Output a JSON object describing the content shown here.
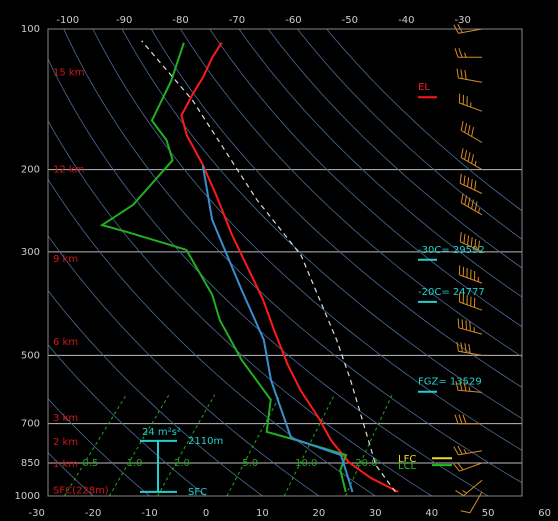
{
  "chart_data": {
    "type": "skewt",
    "ylim": [
      1000,
      100
    ],
    "ylog": true,
    "yticks": [
      100,
      200,
      300,
      500,
      700,
      850,
      1000
    ],
    "xlim": [
      -28,
      56
    ],
    "xticks": [
      -30,
      -20,
      -10,
      0,
      10,
      20,
      30,
      40,
      50,
      60
    ],
    "x2ticks": [
      -100,
      -90,
      -80,
      -70,
      -60,
      -50,
      -40,
      -30
    ],
    "grid": true,
    "series": [
      {
        "color": "#ff1a1a",
        "x": [
          33.4,
          26.2,
          19.8,
          13.1,
          7.4,
          -0.4,
          -6.7,
          -14.8,
          -21.6,
          -30.2,
          -37.6,
          -47.0,
          -54.2,
          -61.7,
          -65.9,
          -67.3,
          -68.2,
          -69.8,
          -70.5
        ],
        "y": [
          980,
          914,
          846,
          759,
          681,
          593,
          524,
          441,
          380,
          320,
          276,
          226,
          195,
          169,
          153,
          138,
          127,
          115,
          107
        ]
      },
      {
        "color": "#20b020",
        "x": [
          24.1,
          19.6,
          18.2,
          6.9,
          0.4,
          -4.1,
          -15.7,
          -26,
          -31.4,
          -43.3,
          -56.7,
          -62.2,
          -60,
          -60.2,
          -64.5,
          -70.3,
          -73.3,
          -77.2
        ],
        "y": [
          980,
          880,
          817,
          759,
          729,
          622,
          511,
          420,
          371,
          297,
          272,
          263,
          238,
          191,
          173,
          157,
          129,
          107
        ]
      },
      {
        "color": "#3a8fd0",
        "x": [
          25.3,
          17.3,
          5.7,
          -7.2,
          -15,
          -27,
          -43.6,
          -54
        ],
        "y": [
          980,
          817,
          751,
          565,
          463,
          362,
          256,
          196
        ]
      },
      {
        "color": "#dddddd",
        "dash": true,
        "x": [
          32.9,
          25.1,
          6.9,
          -2.1,
          -22.1,
          -38.9,
          -66.4,
          -85
        ],
        "y": [
          980,
          859,
          565,
          463,
          305,
          232,
          142,
          106
        ]
      }
    ],
    "dry_adiabats": [
      -30,
      -20,
      -10,
      0,
      10,
      20,
      30,
      40,
      50,
      60,
      70,
      80,
      90,
      100,
      110,
      120,
      130,
      140,
      150
    ],
    "mixing_ratios": [
      {
        "value": 0.5,
        "label": "0.5"
      },
      {
        "value": 1,
        "label": "1.0"
      },
      {
        "value": 2,
        "label": "2.0"
      },
      {
        "value": 5,
        "label": "5.0"
      },
      {
        "value": 10,
        "label": "10.0"
      },
      {
        "value": 20,
        "label": "20.0"
      }
    ],
    "height_labels": [
      {
        "label": "15 km",
        "pressure": 124
      },
      {
        "label": "12 km",
        "pressure": 200
      },
      {
        "label": "9 km",
        "pressure": 311
      },
      {
        "label": "6 km",
        "pressure": 468
      },
      {
        "label": "3 km",
        "pressure": 681
      },
      {
        "label": "2 km",
        "pressure": 766
      },
      {
        "label": "1 km",
        "pressure": 853
      },
      {
        "label": "SFC(228m)",
        "pressure": 973
      }
    ],
    "levels": [
      {
        "label": "EL",
        "pressure": 140,
        "color": "#ff1a1a"
      },
      {
        "label": "-30C= 29592",
        "pressure": 312,
        "color": "#22d0d0"
      },
      {
        "label": "-20C= 24777",
        "pressure": 384,
        "color": "#22d0d0"
      },
      {
        "label": "FGZ= 13529",
        "pressure": 598,
        "color": "#22d0d0"
      },
      {
        "label": "LFC",
        "pressure": 830,
        "color": "#e8e020"
      },
      {
        "label": "LCL",
        "pressure": 859,
        "color": "#20c020"
      }
    ],
    "storm_layer": {
      "label": "24 m²s²",
      "top_label": "2110m",
      "bottom_label": "SFC",
      "top_pressure": 762,
      "bottom_pressure": 980,
      "color": "#22d0d0"
    },
    "winds": {
      "color": "#d98c26",
      "pressure": [
        980,
        925,
        850,
        800,
        700,
        600,
        500,
        450,
        400,
        350,
        300,
        250,
        225,
        200,
        175,
        150,
        130,
        115,
        100
      ],
      "direction": [
        210,
        230,
        250,
        260,
        270,
        275,
        280,
        285,
        290,
        290,
        295,
        300,
        295,
        300,
        300,
        290,
        280,
        270,
        260
      ],
      "speed": [
        10,
        15,
        20,
        25,
        30,
        35,
        40,
        45,
        50,
        55,
        60,
        55,
        50,
        45,
        40,
        35,
        30,
        25,
        20
      ]
    }
  }
}
